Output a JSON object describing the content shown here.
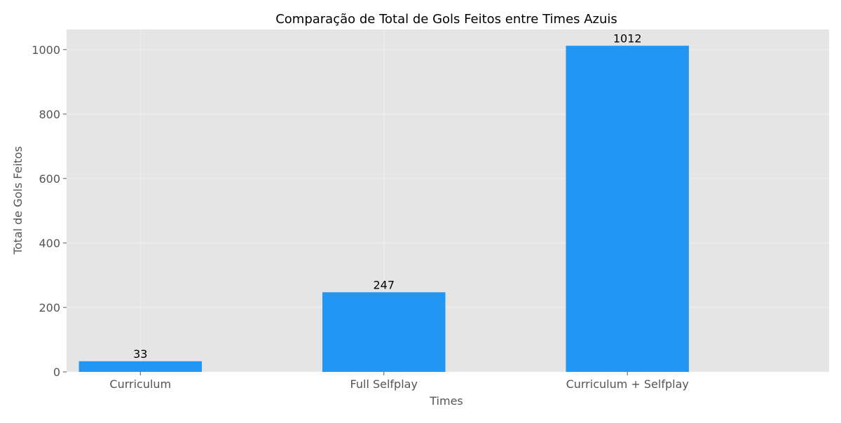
{
  "chart_data": {
    "type": "bar",
    "title": "Comparação de Total de Gols Feitos entre Times Azuis",
    "xlabel": "Times",
    "ylabel": "Total de Gols Feitos",
    "categories": [
      "Curriculum",
      "Full Selfplay",
      "Curriculum + Selfplay"
    ],
    "values": [
      33,
      247,
      1012
    ],
    "data_labels": [
      "33",
      "247",
      "1012"
    ],
    "ylim": [
      0,
      1062.6
    ],
    "yticks": [
      0,
      200,
      400,
      600,
      800,
      1000
    ],
    "grid": true,
    "legend": "none",
    "colors": {
      "bar": "#2196f3",
      "plot_background": "#e5e5e5",
      "grid": "#f2f2f2",
      "axis_text": "#555555"
    }
  }
}
